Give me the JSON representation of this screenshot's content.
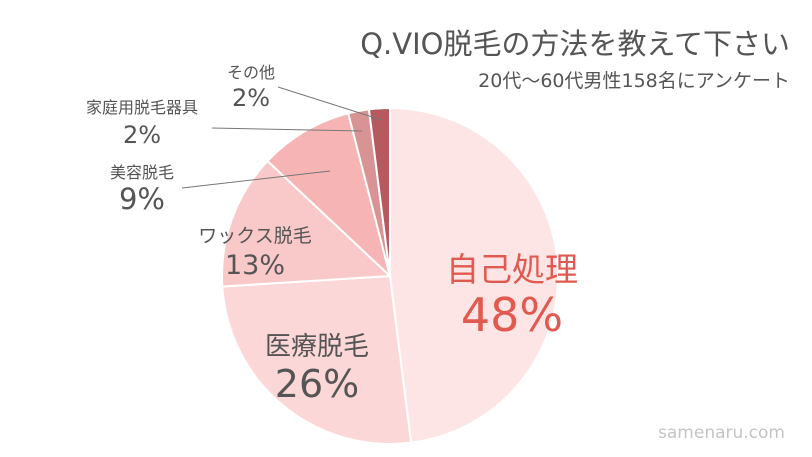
{
  "chart_data": {
    "type": "pie",
    "title": "Q.VIO脱毛の方法を教えて下さい",
    "subtitle": "20代〜60代男性158名にアンケート",
    "slices": [
      {
        "label": "自己処理",
        "value": 48,
        "display": "48%",
        "color": "#fde5e5"
      },
      {
        "label": "医療脱毛",
        "value": 26,
        "display": "26%",
        "color": "#fcd7d7"
      },
      {
        "label": "ワックス脱毛",
        "value": 13,
        "display": "13%",
        "color": "#f9c8c8"
      },
      {
        "label": "美容脱毛",
        "value": 9,
        "display": "9%",
        "color": "#f6b4b4"
      },
      {
        "label": "家庭用脱毛器具",
        "value": 2,
        "display": "2%",
        "color": "#d89494"
      },
      {
        "label": "その他",
        "value": 2,
        "display": "2%",
        "color": "#b55a5f"
      }
    ],
    "highlight_color": "#e05a4f",
    "text_color": "#555555"
  },
  "watermark": "samenaru.com"
}
